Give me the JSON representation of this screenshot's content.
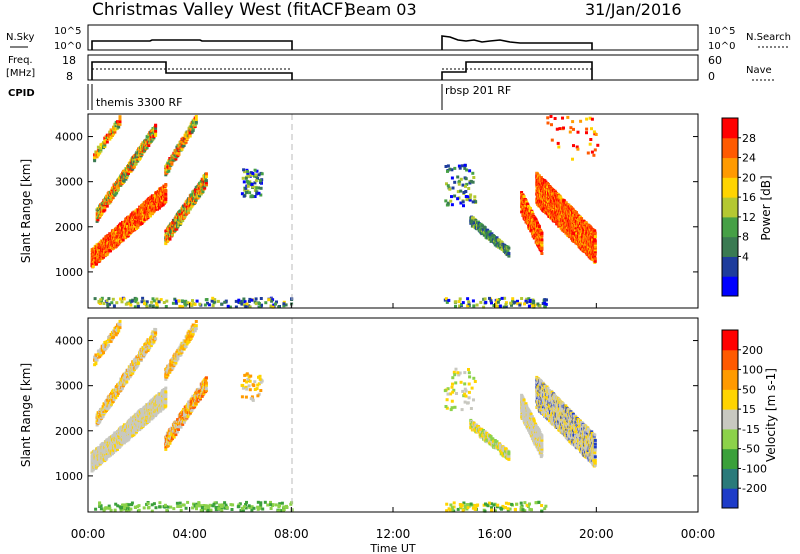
{
  "header": {
    "title": "Christmas Valley West (fitACF)",
    "beam": "Beam 03",
    "date": "31/Jan/2016"
  },
  "top_panels": {
    "nsky_label": "N.Sky",
    "nsky_ticks": [
      "10^5",
      "10^0"
    ],
    "nsearch_ticks": [
      "10^5",
      "10^0"
    ],
    "nsearch_label": "N.Search",
    "freq_label": "Freq.",
    "freq_unit": "[MHz]",
    "freq_ticks": [
      "18",
      "8"
    ],
    "nave_ticks": [
      "60",
      "0"
    ],
    "nave_label": "Nave",
    "cpid_label": "CPID",
    "cpid_segments": [
      "themis 3300 RF",
      "rbsp 201 RF"
    ]
  },
  "colors": {
    "scatter_red": "#ff2a00",
    "scatter_orange": "#ff9a00",
    "ground_gray": "#c8c8c0",
    "ground_green": "#66cc33"
  },
  "chart_data": [
    {
      "type": "heatmap",
      "panel": "power",
      "ylabel": "Slant Range [km]",
      "yticks": [
        "4000",
        "3000",
        "2000",
        "1000"
      ],
      "ylim": [
        200,
        4500
      ],
      "xlim": [
        0,
        24
      ],
      "colorbar_label": "Power [dB]",
      "colorbar_ticks": [
        "28",
        "24",
        "20",
        "16",
        "12",
        "8",
        "4"
      ],
      "colorbar_colors": [
        "#0000ff",
        "#1e3c9c",
        "#3a7a52",
        "#46a046",
        "#b4c832",
        "#ffd400",
        "#ff9a00",
        "#ff5a00",
        "#ff0000"
      ],
      "data_gaps": [
        [
          8,
          14
        ],
        [
          20,
          24
        ]
      ]
    },
    {
      "type": "heatmap",
      "panel": "velocity",
      "ylabel": "Slant Range [km]",
      "yticks": [
        "4000",
        "3000",
        "2000",
        "1000"
      ],
      "ylim": [
        200,
        4500
      ],
      "xlim": [
        0,
        24
      ],
      "colorbar_label": "Velocity [m s-1]",
      "colorbar_ticks": [
        "200",
        "100",
        "50",
        "15",
        "-15",
        "-50",
        "-100",
        "-200"
      ],
      "colorbar_colors": [
        "#1e3cc8",
        "#2a7a7a",
        "#3aa03a",
        "#8cd24a",
        "#c8c8c0",
        "#ffd400",
        "#ff9a00",
        "#ff5a00",
        "#ff0000"
      ],
      "xticks": [
        "00:00",
        "04:00",
        "08:00",
        "12:00",
        "16:00",
        "20:00",
        "00:00"
      ],
      "xlabel": "Time UT"
    }
  ]
}
